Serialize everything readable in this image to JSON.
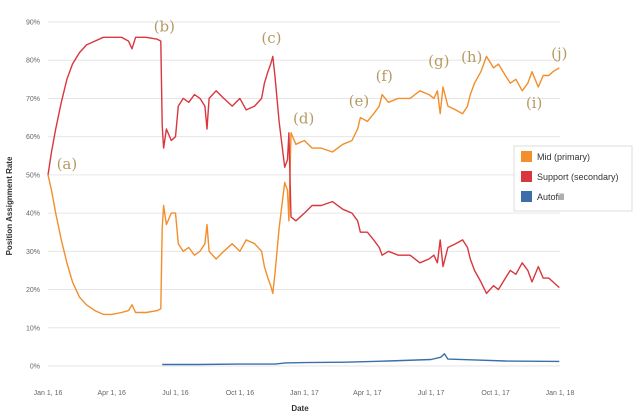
{
  "chart_data": {
    "type": "line",
    "xlabel": "Date",
    "ylabel": "Position Assignment Rate",
    "x_range": [
      "2016-01-01",
      "2018-01-01"
    ],
    "x_ticks": [
      {
        "date": "2016-01-01",
        "label": "Jan 1, 16"
      },
      {
        "date": "2016-04-01",
        "label": "Apr 1, 16"
      },
      {
        "date": "2016-07-01",
        "label": "Jul 1, 16"
      },
      {
        "date": "2016-10-01",
        "label": "Oct 1, 16"
      },
      {
        "date": "2017-01-01",
        "label": "Jan 1, 17"
      },
      {
        "date": "2017-04-01",
        "label": "Apr 1, 17"
      },
      {
        "date": "2017-07-01",
        "label": "Jul 1, 17"
      },
      {
        "date": "2017-10-01",
        "label": "Oct 1, 17"
      },
      {
        "date": "2018-01-01",
        "label": "Jan 1, 18"
      }
    ],
    "ylim": [
      0,
      90
    ],
    "y_ticks": [
      {
        "value": 0,
        "label": "0%"
      },
      {
        "value": 10,
        "label": "10%"
      },
      {
        "value": 20,
        "label": "20%"
      },
      {
        "value": 30,
        "label": "30%"
      },
      {
        "value": 40,
        "label": "40%"
      },
      {
        "value": 50,
        "label": "50%"
      },
      {
        "value": 60,
        "label": "60%"
      },
      {
        "value": 70,
        "label": "70%"
      },
      {
        "value": 80,
        "label": "80%"
      },
      {
        "value": 90,
        "label": "90%"
      }
    ],
    "grid": "horizontal",
    "legend_position": "right",
    "series": [
      {
        "name": "Mid (primary)",
        "color": "#f28e2b",
        "points": [
          [
            "2016-01-01",
            50
          ],
          [
            "2016-01-06",
            46
          ],
          [
            "2016-01-12",
            40
          ],
          [
            "2016-01-20",
            33
          ],
          [
            "2016-01-28",
            27
          ],
          [
            "2016-02-05",
            22
          ],
          [
            "2016-02-15",
            18
          ],
          [
            "2016-02-25",
            16
          ],
          [
            "2016-03-08",
            14.5
          ],
          [
            "2016-03-20",
            13.5
          ],
          [
            "2016-04-01",
            13.5
          ],
          [
            "2016-04-15",
            14
          ],
          [
            "2016-04-25",
            14.5
          ],
          [
            "2016-04-30",
            16
          ],
          [
            "2016-05-05",
            14
          ],
          [
            "2016-05-20",
            14
          ],
          [
            "2016-06-05",
            14.5
          ],
          [
            "2016-06-10",
            15
          ],
          [
            "2016-06-12",
            36
          ],
          [
            "2016-06-14",
            42
          ],
          [
            "2016-06-18",
            37
          ],
          [
            "2016-06-25",
            40
          ],
          [
            "2016-07-01",
            40
          ],
          [
            "2016-07-05",
            32
          ],
          [
            "2016-07-12",
            30
          ],
          [
            "2016-07-20",
            31
          ],
          [
            "2016-07-28",
            29
          ],
          [
            "2016-08-05",
            30
          ],
          [
            "2016-08-12",
            32
          ],
          [
            "2016-08-15",
            37
          ],
          [
            "2016-08-18",
            30
          ],
          [
            "2016-08-28",
            28
          ],
          [
            "2016-09-08",
            30
          ],
          [
            "2016-09-20",
            32
          ],
          [
            "2016-10-01",
            30
          ],
          [
            "2016-10-10",
            33
          ],
          [
            "2016-10-22",
            32
          ],
          [
            "2016-11-01",
            30
          ],
          [
            "2016-11-05",
            26
          ],
          [
            "2016-11-10",
            23
          ],
          [
            "2016-11-14",
            21
          ],
          [
            "2016-11-17",
            19
          ],
          [
            "2016-11-20",
            24
          ],
          [
            "2016-11-26",
            36
          ],
          [
            "2016-11-30",
            42
          ],
          [
            "2016-12-04",
            48
          ],
          [
            "2016-12-08",
            46
          ],
          [
            "2016-12-10",
            38
          ],
          [
            "2016-12-13",
            61
          ],
          [
            "2016-12-20",
            58
          ],
          [
            "2017-01-01",
            59
          ],
          [
            "2017-01-12",
            57
          ],
          [
            "2017-01-25",
            57
          ],
          [
            "2017-02-10",
            56
          ],
          [
            "2017-02-25",
            58
          ],
          [
            "2017-03-10",
            59
          ],
          [
            "2017-03-18",
            62
          ],
          [
            "2017-03-22",
            65
          ],
          [
            "2017-04-01",
            64
          ],
          [
            "2017-04-10",
            66
          ],
          [
            "2017-04-18",
            68
          ],
          [
            "2017-04-22",
            71
          ],
          [
            "2017-05-01",
            69
          ],
          [
            "2017-05-15",
            70
          ],
          [
            "2017-06-01",
            70
          ],
          [
            "2017-06-15",
            72
          ],
          [
            "2017-06-28",
            71
          ],
          [
            "2017-07-05",
            70
          ],
          [
            "2017-07-10",
            72
          ],
          [
            "2017-07-14",
            66
          ],
          [
            "2017-07-18",
            73
          ],
          [
            "2017-07-25",
            68
          ],
          [
            "2017-08-05",
            67
          ],
          [
            "2017-08-15",
            66
          ],
          [
            "2017-08-22",
            68
          ],
          [
            "2017-08-26",
            71
          ],
          [
            "2017-09-01",
            74
          ],
          [
            "2017-09-10",
            77
          ],
          [
            "2017-09-18",
            81
          ],
          [
            "2017-09-28",
            78
          ],
          [
            "2017-10-05",
            79
          ],
          [
            "2017-10-15",
            76
          ],
          [
            "2017-10-22",
            74
          ],
          [
            "2017-10-30",
            75
          ],
          [
            "2017-11-08",
            72
          ],
          [
            "2017-11-16",
            74
          ],
          [
            "2017-11-22",
            77
          ],
          [
            "2017-12-01",
            73
          ],
          [
            "2017-12-08",
            76
          ],
          [
            "2017-12-16",
            76
          ],
          [
            "2017-12-22",
            77
          ],
          [
            "2017-12-31",
            78
          ]
        ]
      },
      {
        "name": "Support (secondary)",
        "color": "#d9363e",
        "points": [
          [
            "2016-01-01",
            50
          ],
          [
            "2016-01-06",
            56
          ],
          [
            "2016-01-12",
            62
          ],
          [
            "2016-01-20",
            69
          ],
          [
            "2016-01-28",
            75
          ],
          [
            "2016-02-05",
            79
          ],
          [
            "2016-02-15",
            82
          ],
          [
            "2016-02-25",
            84
          ],
          [
            "2016-03-08",
            85
          ],
          [
            "2016-03-20",
            86
          ],
          [
            "2016-04-01",
            86
          ],
          [
            "2016-04-15",
            86
          ],
          [
            "2016-04-25",
            85
          ],
          [
            "2016-04-30",
            83
          ],
          [
            "2016-05-05",
            86
          ],
          [
            "2016-05-20",
            86
          ],
          [
            "2016-06-05",
            85.5
          ],
          [
            "2016-06-10",
            85
          ],
          [
            "2016-06-12",
            63
          ],
          [
            "2016-06-14",
            57
          ],
          [
            "2016-06-18",
            62
          ],
          [
            "2016-06-25",
            59
          ],
          [
            "2016-07-01",
            60
          ],
          [
            "2016-07-05",
            68
          ],
          [
            "2016-07-12",
            70
          ],
          [
            "2016-07-20",
            69
          ],
          [
            "2016-07-28",
            71
          ],
          [
            "2016-08-05",
            70
          ],
          [
            "2016-08-12",
            68
          ],
          [
            "2016-08-15",
            62
          ],
          [
            "2016-08-18",
            70
          ],
          [
            "2016-08-28",
            72
          ],
          [
            "2016-09-08",
            70
          ],
          [
            "2016-09-20",
            68
          ],
          [
            "2016-10-01",
            70
          ],
          [
            "2016-10-10",
            67
          ],
          [
            "2016-10-22",
            68
          ],
          [
            "2016-11-01",
            70
          ],
          [
            "2016-11-05",
            74
          ],
          [
            "2016-11-10",
            77
          ],
          [
            "2016-11-14",
            79
          ],
          [
            "2016-11-17",
            81
          ],
          [
            "2016-11-20",
            76
          ],
          [
            "2016-11-26",
            64
          ],
          [
            "2016-11-30",
            58
          ],
          [
            "2016-12-04",
            52
          ],
          [
            "2016-12-08",
            54
          ],
          [
            "2016-12-10",
            61
          ],
          [
            "2016-12-13",
            39
          ],
          [
            "2016-12-20",
            38
          ],
          [
            "2017-01-01",
            40
          ],
          [
            "2017-01-12",
            42
          ],
          [
            "2017-01-25",
            42
          ],
          [
            "2017-02-10",
            43
          ],
          [
            "2017-02-25",
            41
          ],
          [
            "2017-03-10",
            40
          ],
          [
            "2017-03-18",
            38
          ],
          [
            "2017-03-22",
            35
          ],
          [
            "2017-04-01",
            35
          ],
          [
            "2017-04-10",
            33
          ],
          [
            "2017-04-18",
            31
          ],
          [
            "2017-04-22",
            29
          ],
          [
            "2017-05-01",
            30
          ],
          [
            "2017-05-15",
            29
          ],
          [
            "2017-06-01",
            29
          ],
          [
            "2017-06-15",
            27
          ],
          [
            "2017-06-28",
            28
          ],
          [
            "2017-07-05",
            29
          ],
          [
            "2017-07-10",
            27
          ],
          [
            "2017-07-14",
            33
          ],
          [
            "2017-07-18",
            26
          ],
          [
            "2017-07-25",
            31
          ],
          [
            "2017-08-05",
            32
          ],
          [
            "2017-08-15",
            33
          ],
          [
            "2017-08-22",
            31
          ],
          [
            "2017-08-26",
            28
          ],
          [
            "2017-09-01",
            25
          ],
          [
            "2017-09-10",
            22
          ],
          [
            "2017-09-18",
            19
          ],
          [
            "2017-09-28",
            21
          ],
          [
            "2017-10-05",
            20
          ],
          [
            "2017-10-15",
            23
          ],
          [
            "2017-10-22",
            25
          ],
          [
            "2017-10-30",
            24
          ],
          [
            "2017-11-08",
            27
          ],
          [
            "2017-11-16",
            25
          ],
          [
            "2017-11-22",
            22
          ],
          [
            "2017-12-01",
            26
          ],
          [
            "2017-12-08",
            23
          ],
          [
            "2017-12-16",
            23
          ],
          [
            "2017-12-22",
            22
          ],
          [
            "2017-12-31",
            20.5
          ]
        ]
      },
      {
        "name": "Autofill",
        "color": "#3c6fa8",
        "points": [
          [
            "2016-06-12",
            0.4
          ],
          [
            "2016-08-01",
            0.4
          ],
          [
            "2016-10-01",
            0.5
          ],
          [
            "2016-11-20",
            0.5
          ],
          [
            "2016-12-05",
            0.8
          ],
          [
            "2017-01-01",
            0.9
          ],
          [
            "2017-03-01",
            1.0
          ],
          [
            "2017-05-01",
            1.3
          ],
          [
            "2017-07-01",
            1.7
          ],
          [
            "2017-07-15",
            2.3
          ],
          [
            "2017-07-20",
            3.2
          ],
          [
            "2017-07-25",
            1.8
          ],
          [
            "2017-09-01",
            1.6
          ],
          [
            "2017-10-15",
            1.3
          ],
          [
            "2017-12-31",
            1.2
          ]
        ]
      }
    ],
    "annotations": [
      {
        "label": "(a)",
        "date": "2016-01-28",
        "value": 51.5
      },
      {
        "label": "(b)",
        "date": "2016-06-15",
        "value": 87.5
      },
      {
        "label": "(c)",
        "date": "2016-11-15",
        "value": 84.5
      },
      {
        "label": "(d)",
        "date": "2016-12-31",
        "value": 63.5
      },
      {
        "label": "(e)",
        "date": "2017-03-20",
        "value": 68
      },
      {
        "label": "(f)",
        "date": "2017-04-25",
        "value": 74.5
      },
      {
        "label": "(g)",
        "date": "2017-07-12",
        "value": 78.5
      },
      {
        "label": "(h)",
        "date": "2017-08-28",
        "value": 79.5
      },
      {
        "label": "(i)",
        "date": "2017-11-25",
        "value": 67.5
      },
      {
        "label": "(j)",
        "date": "2017-12-31",
        "value": 80.5
      }
    ]
  }
}
